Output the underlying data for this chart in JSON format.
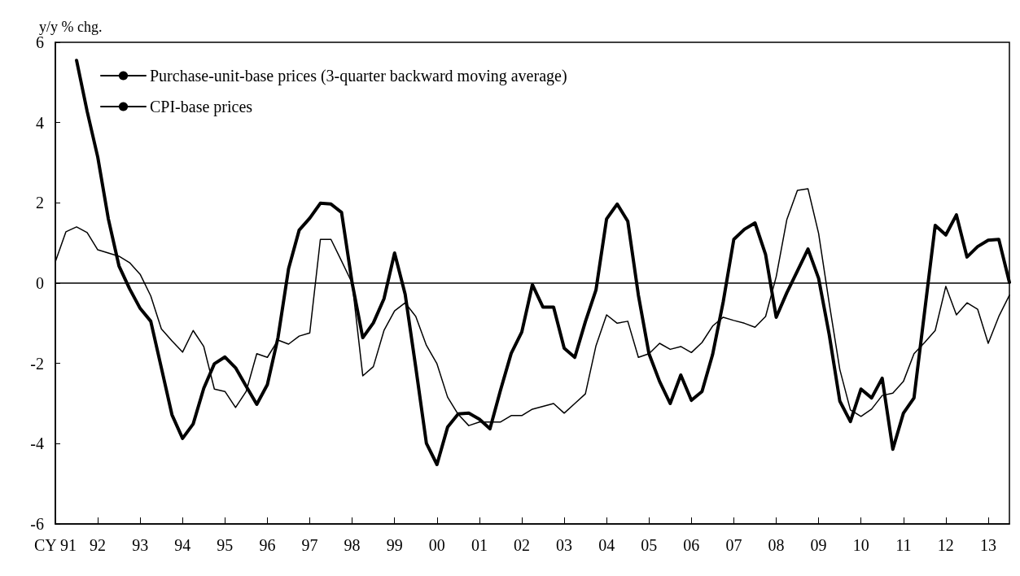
{
  "chart_data": {
    "type": "line",
    "ylabel": "y/y % chg.",
    "x": [
      1991,
      1991.25,
      1991.5,
      1991.75,
      1992,
      1992.25,
      1992.5,
      1992.75,
      1993,
      1993.25,
      1993.5,
      1993.75,
      1994,
      1994.25,
      1994.5,
      1994.75,
      1995,
      1995.25,
      1995.5,
      1995.75,
      1996,
      1996.25,
      1996.5,
      1996.75,
      1997,
      1997.25,
      1997.5,
      1997.75,
      1998,
      1998.25,
      1998.5,
      1998.75,
      1999,
      1999.25,
      1999.5,
      1999.75,
      2000,
      2000.25,
      2000.5,
      2000.75,
      2001,
      2001.25,
      2001.5,
      2001.75,
      2002,
      2002.25,
      2002.5,
      2002.75,
      2003,
      2003.25,
      2003.5,
      2003.75,
      2004,
      2004.25,
      2004.5,
      2004.75,
      2005,
      2005.25,
      2005.5,
      2005.75,
      2006,
      2006.25,
      2006.5,
      2006.75,
      2007,
      2007.25,
      2007.5,
      2007.75,
      2008,
      2008.25,
      2008.5,
      2008.75,
      2009,
      2009.25,
      2009.5,
      2009.75,
      2010,
      2010.25,
      2010.5,
      2010.75,
      2011,
      2011.25,
      2011.5,
      2011.75,
      2012,
      2012.25,
      2012.5,
      2012.75,
      2013,
      2013.25,
      2013.5
    ],
    "series": [
      {
        "name": "Purchase-unit-base prices (3-quarter backward moving average)",
        "color": "#000000",
        "values": [
          null,
          null,
          5.55,
          4.28,
          3.14,
          1.6,
          0.43,
          -0.14,
          -0.63,
          -0.95,
          -2.11,
          -3.28,
          -3.87,
          -3.51,
          -2.62,
          -2.01,
          -1.84,
          -2.11,
          -2.57,
          -3.02,
          -2.53,
          -1.36,
          0.36,
          1.32,
          1.62,
          1.99,
          1.97,
          1.76,
          0.0,
          -1.36,
          -0.99,
          -0.39,
          0.75,
          -0.28,
          -2.1,
          -3.99,
          -4.52,
          -3.59,
          -3.26,
          -3.24,
          -3.39,
          -3.63,
          -2.66,
          -1.75,
          -1.22,
          -0.04,
          -0.6,
          -0.6,
          -1.62,
          -1.85,
          -0.96,
          -0.17,
          1.6,
          1.97,
          1.54,
          -0.3,
          -1.76,
          -2.45,
          -3.0,
          -2.29,
          -2.92,
          -2.7,
          -1.78,
          -0.47,
          1.09,
          1.34,
          1.5,
          0.71,
          -0.85,
          -0.24,
          0.3,
          0.85,
          0.12,
          -1.28,
          -2.94,
          -3.45,
          -2.64,
          -2.86,
          -2.37,
          -4.14,
          -3.24,
          -2.86,
          -0.71,
          1.44,
          1.2,
          1.7,
          0.65,
          0.91,
          1.07,
          1.09,
          0.02
        ]
      },
      {
        "name": "CPI-base prices",
        "color": "#000000",
        "values": [
          0.53,
          1.28,
          1.4,
          1.26,
          0.83,
          0.75,
          0.67,
          0.51,
          0.22,
          -0.32,
          -1.14,
          -1.44,
          -1.72,
          -1.18,
          -1.58,
          -2.64,
          -2.7,
          -3.1,
          -2.7,
          -1.76,
          -1.85,
          -1.42,
          -1.52,
          -1.32,
          -1.24,
          1.09,
          1.09,
          0.55,
          0.0,
          -2.31,
          -2.08,
          -1.18,
          -0.69,
          -0.49,
          -0.83,
          -1.55,
          -2.01,
          -2.84,
          -3.27,
          -3.55,
          -3.46,
          -3.46,
          -3.46,
          -3.3,
          -3.3,
          -3.14,
          -3.07,
          -3.0,
          -3.24,
          -3.0,
          -2.76,
          -1.56,
          -0.79,
          -1.0,
          -0.95,
          -1.85,
          -1.76,
          -1.5,
          -1.65,
          -1.58,
          -1.73,
          -1.48,
          -1.07,
          -0.85,
          -0.93,
          -1.0,
          -1.1,
          -0.83,
          0.16,
          1.58,
          2.31,
          2.35,
          1.24,
          -0.5,
          -2.15,
          -3.16,
          -3.32,
          -3.14,
          -2.8,
          -2.74,
          -2.45,
          -1.76,
          -1.48,
          -1.18,
          -0.08,
          -0.79,
          -0.49,
          -0.65,
          -1.5,
          -0.83,
          -0.3
        ]
      }
    ],
    "xlim": [
      1991,
      2013.5
    ],
    "xticks": [
      {
        "value": 1991,
        "label": "CY 91"
      },
      {
        "value": 1992,
        "label": "92"
      },
      {
        "value": 1993,
        "label": "93"
      },
      {
        "value": 1994,
        "label": "94"
      },
      {
        "value": 1995,
        "label": "95"
      },
      {
        "value": 1996,
        "label": "96"
      },
      {
        "value": 1997,
        "label": "97"
      },
      {
        "value": 1998,
        "label": "98"
      },
      {
        "value": 1999,
        "label": "99"
      },
      {
        "value": 2000,
        "label": "00"
      },
      {
        "value": 2001,
        "label": "01"
      },
      {
        "value": 2002,
        "label": "02"
      },
      {
        "value": 2003,
        "label": "03"
      },
      {
        "value": 2004,
        "label": "04"
      },
      {
        "value": 2005,
        "label": "05"
      },
      {
        "value": 2006,
        "label": "06"
      },
      {
        "value": 2007,
        "label": "07"
      },
      {
        "value": 2008,
        "label": "08"
      },
      {
        "value": 2009,
        "label": "09"
      },
      {
        "value": 2010,
        "label": "10"
      },
      {
        "value": 2011,
        "label": "11"
      },
      {
        "value": 2012,
        "label": "12"
      },
      {
        "value": 2013,
        "label": "13"
      }
    ],
    "ylim": [
      -6,
      6
    ],
    "yticks": [
      -6,
      -4,
      -2,
      0,
      2,
      4,
      6
    ],
    "ref_lines": [
      {
        "axis": "y",
        "value": 0,
        "color": "#000000"
      }
    ],
    "legend": "top left",
    "grid": false,
    "marker": "none",
    "line_style": "solid"
  }
}
